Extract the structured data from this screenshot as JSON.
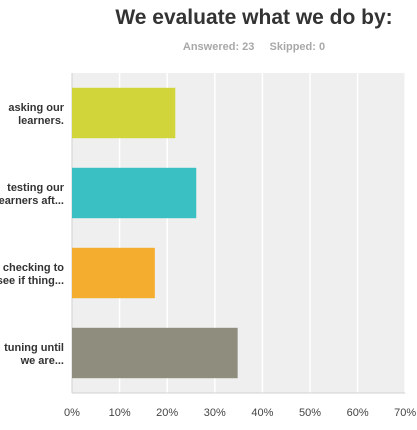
{
  "chart_data": {
    "type": "bar",
    "orientation": "horizontal",
    "title": "We evaluate what we do by:",
    "answered_label": "Answered: 23",
    "skipped_label": "Skipped: 0",
    "categories": [
      [
        "asking our",
        "learners."
      ],
      [
        "testing our",
        "learners aft..."
      ],
      [
        "checking to",
        "see if thing..."
      ],
      [
        "tuning until",
        "we are..."
      ]
    ],
    "values": [
      21.7,
      26.1,
      17.4,
      34.8
    ],
    "colors": [
      "#d2d53a",
      "#3abfc2",
      "#f5ad2f",
      "#8e8d7e"
    ],
    "xlim": [
      0,
      70
    ],
    "ticks": [
      "0%",
      "10%",
      "20%",
      "30%",
      "40%",
      "50%",
      "60%",
      "70%"
    ],
    "grid": true
  }
}
